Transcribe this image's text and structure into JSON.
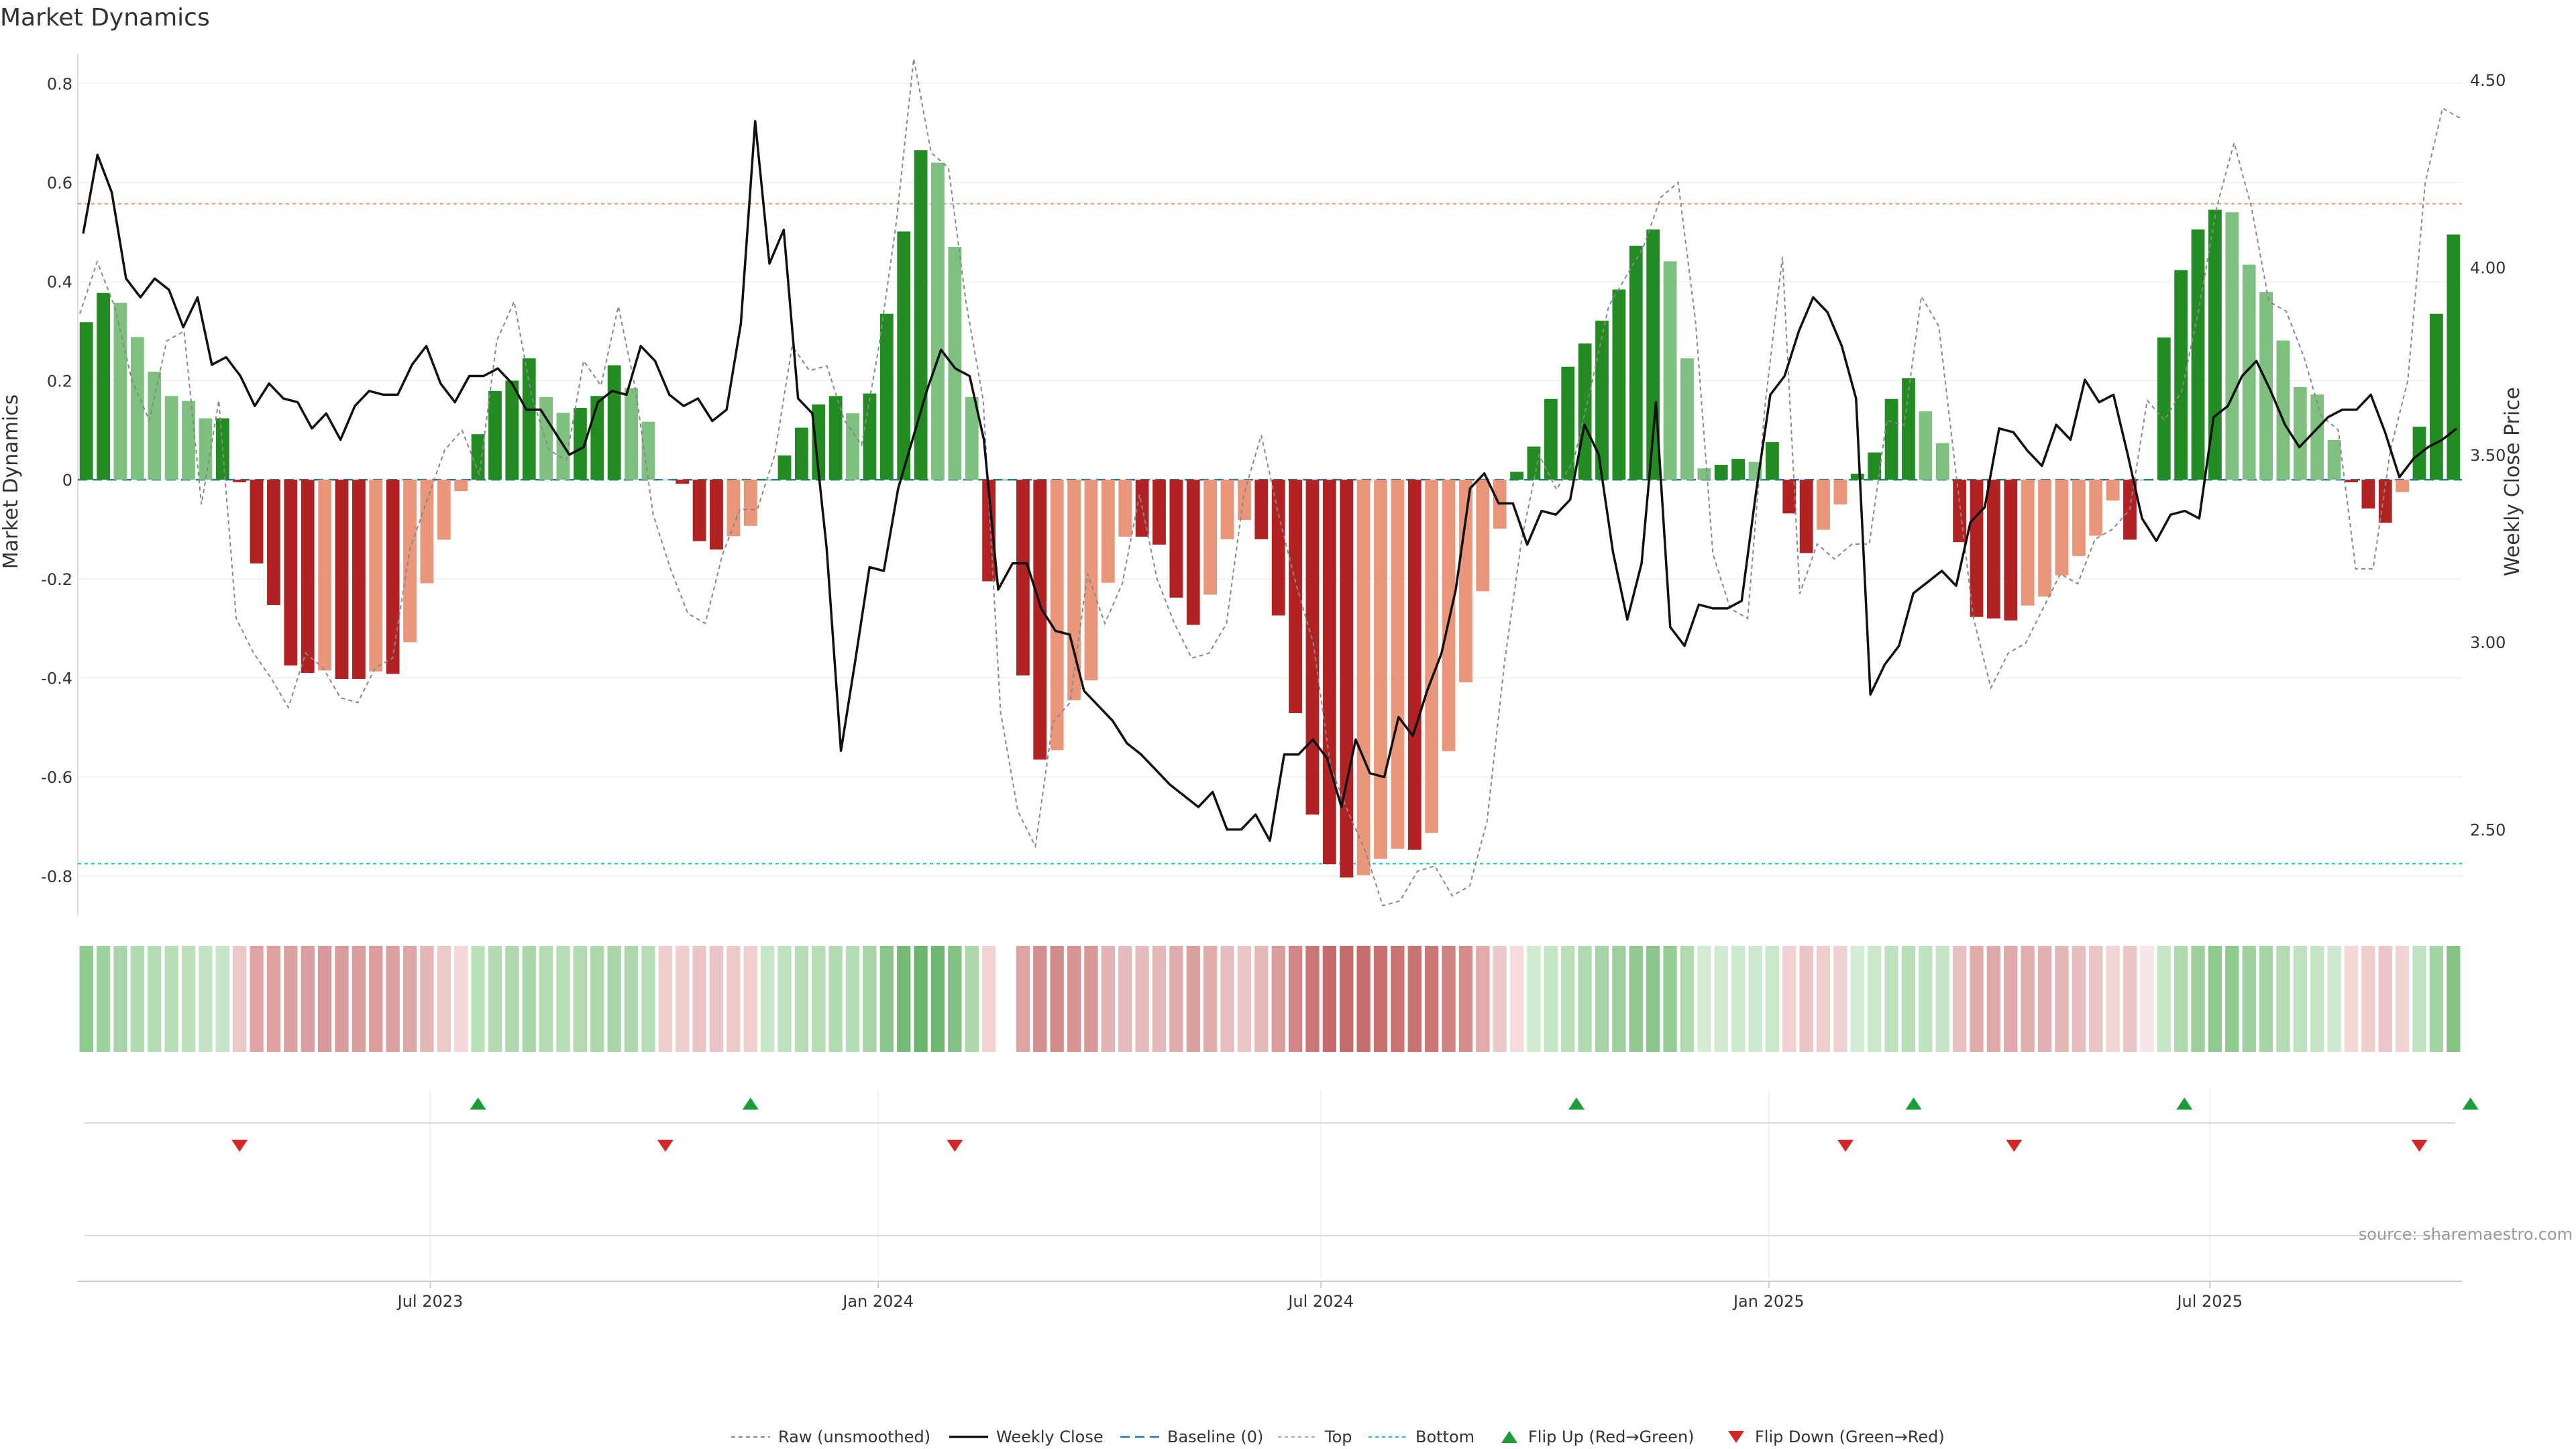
{
  "chart_data": {
    "type": "bar",
    "title": "Market Dynamics",
    "ylabel": "Market Dynamics",
    "y2label": "Weekly Close Price",
    "ylim": [
      -0.88,
      0.86
    ],
    "y2lim": [
      2.27,
      4.57
    ],
    "y_ticks": [
      "0.8",
      "0.6",
      "0.4",
      "0.2",
      "0",
      "-0.2",
      "-0.4",
      "-0.6",
      "-0.8"
    ],
    "y2_ticks": [
      "4.50",
      "4.00",
      "3.50",
      "3.00",
      "2.50"
    ],
    "x_ticks": [
      "Jul 2023",
      "Jan 2024",
      "Jul 2024",
      "Jan 2025",
      "Jul 2025"
    ],
    "x_tick_positions": [
      20.2,
      46.5,
      72.5,
      98.8,
      124.7
    ],
    "grid": true,
    "top_line": 0.557,
    "bottom_line": -0.775,
    "baseline": 0,
    "bar_values": [
      0.318,
      0.377,
      0.357,
      0.288,
      0.218,
      0.169,
      0.159,
      0.124,
      0.124,
      -0.005,
      -0.169,
      -0.253,
      -0.375,
      -0.39,
      -0.385,
      -0.402,
      -0.402,
      -0.387,
      -0.392,
      -0.328,
      -0.209,
      -0.121,
      -0.023,
      0.092,
      0.179,
      0.2,
      0.245,
      0.167,
      0.135,
      0.145,
      0.169,
      0.231,
      0.185,
      0.117,
      0,
      -0.008,
      -0.124,
      -0.141,
      -0.114,
      -0.093,
      0,
      0.049,
      0.105,
      0.152,
      0.169,
      0.134,
      0.174,
      0.335,
      0.501,
      0.665,
      0.64,
      0.47,
      0.167,
      -0.205,
      0,
      -0.395,
      -0.565,
      -0.546,
      -0.445,
      -0.405,
      -0.208,
      -0.115,
      -0.115,
      -0.131,
      -0.238,
      -0.293,
      -0.232,
      -0.12,
      -0.081,
      -0.12,
      -0.274,
      -0.471,
      -0.676,
      -0.776,
      -0.803,
      -0.798,
      -0.765,
      -0.745,
      -0.747,
      -0.713,
      -0.548,
      -0.409,
      -0.225,
      -0.099,
      0.016,
      0.067,
      0.163,
      0.228,
      0.275,
      0.321,
      0.384,
      0.472,
      0.505,
      0.441,
      0.245,
      0.023,
      0.03,
      0.042,
      0.036,
      0.076,
      -0.068,
      -0.148,
      -0.101,
      -0.05,
      0.012,
      0.055,
      0.163,
      0.205,
      0.138,
      0.074,
      -0.126,
      -0.277,
      -0.28,
      -0.284,
      -0.254,
      -0.236,
      -0.193,
      -0.154,
      -0.113,
      -0.042,
      -0.121,
      0,
      0.287,
      0.423,
      0.505,
      0.545,
      0.54,
      0.434,
      0.379,
      0.281,
      0.187,
      0.172,
      0.08,
      -0.005,
      -0.058,
      -0.087,
      -0.025,
      0.107,
      0.335,
      0.495
    ],
    "bar_colors_hex": {
      "strong_up": "#228b22",
      "weak_up": "#7fbf7f",
      "strong_down": "#b22222",
      "weak_down": "#e9967a"
    },
    "price_values": [
      4.09,
      4.3,
      4.2,
      3.97,
      3.92,
      3.97,
      3.94,
      3.84,
      3.92,
      3.74,
      3.76,
      3.71,
      3.63,
      3.69,
      3.65,
      3.64,
      3.57,
      3.61,
      3.54,
      3.63,
      3.67,
      3.66,
      3.66,
      3.74,
      3.79,
      3.69,
      3.64,
      3.71,
      3.71,
      3.73,
      3.69,
      3.62,
      3.62,
      3.56,
      3.5,
      3.52,
      3.64,
      3.67,
      3.66,
      3.79,
      3.75,
      3.66,
      3.63,
      3.65,
      3.59,
      3.62,
      3.85,
      4.39,
      4.01,
      4.1,
      3.65,
      3.61,
      3.25,
      2.71,
      2.95,
      3.2,
      3.19,
      3.41,
      3.54,
      3.67,
      3.78,
      3.73,
      3.71,
      3.54,
      3.14,
      3.21,
      3.21,
      3.09,
      3.03,
      3.02,
      2.87,
      2.83,
      2.79,
      2.73,
      2.7,
      2.66,
      2.62,
      2.59,
      2.56,
      2.6,
      2.5,
      2.5,
      2.54,
      2.47,
      2.7,
      2.7,
      2.74,
      2.69,
      2.56,
      2.74,
      2.65,
      2.64,
      2.8,
      2.75,
      2.87,
      2.97,
      3.14,
      3.41,
      3.45,
      3.37,
      3.37,
      3.26,
      3.35,
      3.34,
      3.38,
      3.58,
      3.5,
      3.24,
      3.06,
      3.21,
      3.64,
      3.04,
      2.99,
      3.1,
      3.09,
      3.09,
      3.11,
      3.4,
      3.66,
      3.71,
      3.83,
      3.92,
      3.88,
      3.79,
      3.65,
      2.86,
      2.94,
      2.99,
      3.13,
      3.16,
      3.19,
      3.15,
      3.32,
      3.36,
      3.57,
      3.56,
      3.51,
      3.47,
      3.58,
      3.54,
      3.7,
      3.64,
      3.66,
      3.5,
      3.33,
      3.27,
      3.34,
      3.35,
      3.33,
      3.6,
      3.63,
      3.71,
      3.75,
      3.67,
      3.58,
      3.52,
      3.56,
      3.6,
      3.62,
      3.62,
      3.66,
      3.56,
      3.44,
      3.49,
      3.52,
      3.54,
      3.57
    ],
    "raw_values": [
      0.335,
      0.44,
      0.35,
      0.2,
      0.12,
      0.28,
      0.3,
      -0.05,
      0.16,
      -0.28,
      -0.35,
      -0.4,
      -0.46,
      -0.35,
      -0.38,
      -0.44,
      -0.45,
      -0.38,
      -0.36,
      -0.14,
      -0.04,
      0.06,
      0.1,
      0.01,
      0.28,
      0.36,
      0.17,
      0.06,
      0.04,
      0.24,
      0.19,
      0.35,
      0.18,
      -0.07,
      -0.18,
      -0.27,
      -0.29,
      -0.15,
      -0.06,
      -0.06,
      0.05,
      0.27,
      0.22,
      0.23,
      0.12,
      0.07,
      0.27,
      0.52,
      0.85,
      0.66,
      0.63,
      0.36,
      0.16,
      -0.47,
      -0.67,
      -0.74,
      -0.49,
      -0.45,
      -0.19,
      -0.29,
      -0.21,
      -0.03,
      -0.2,
      -0.29,
      -0.36,
      -0.35,
      -0.29,
      -0.03,
      0.09,
      -0.07,
      -0.21,
      -0.33,
      -0.58,
      -0.67,
      -0.75,
      -0.86,
      -0.85,
      -0.79,
      -0.78,
      -0.84,
      -0.82,
      -0.69,
      -0.37,
      -0.12,
      0.05,
      -0.02,
      0.04,
      0.19,
      0.35,
      0.41,
      0.47,
      0.57,
      0.6,
      0.32,
      -0.15,
      -0.26,
      -0.28,
      0.15,
      0.45,
      -0.23,
      -0.13,
      -0.16,
      -0.13,
      -0.13,
      0.12,
      0.11,
      0.37,
      0.31,
      0.01,
      -0.28,
      -0.42,
      -0.35,
      -0.33,
      -0.26,
      -0.19,
      -0.21,
      -0.12,
      -0.1,
      -0.06,
      0.16,
      0.12,
      0.18,
      0.35,
      0.55,
      0.68,
      0.55,
      0.36,
      0.34,
      0.25,
      0.13,
      0.1,
      -0.18,
      -0.18,
      0.06,
      0.2,
      0.6,
      0.75,
      0.73
    ],
    "heat_strip_colors": [
      "#8fca8f",
      "#9dd19d",
      "#a8d6a8",
      "#b0dab0",
      "#b4dcb4",
      "#b8deb8",
      "#bce0bc",
      "#c2e3c2",
      "#c6e5c6",
      "#ecc8c8",
      "#e0a2a2",
      "#dea0a0",
      "#dba0a0",
      "#db9e9e",
      "#d69a9a",
      "#d89c9c",
      "#db9e9e",
      "#da9c9c",
      "#dc9f9f",
      "#dea7a7",
      "#e3b6b6",
      "#edcaca",
      "#f3d6d6",
      "#b9dfb9",
      "#b2dbb2",
      "#aed9ae",
      "#aad7aa",
      "#b4dcb4",
      "#b6ddb6",
      "#b2dbb2",
      "#acd8ac",
      "#a8d6a8",
      "#acd8ac",
      "#b6ddb6",
      "#eecdcd",
      "#eecdcd",
      "#ebc5c5",
      "#ebc5c5",
      "#edc9c9",
      "#efcfcf",
      "#c7e6c7",
      "#bfe1bf",
      "#b7dfb7",
      "#b5deb5",
      "#b0dab0",
      "#b4dcb4",
      "#a6d4a6",
      "#8bc68b",
      "#74ba74",
      "#6cb56c",
      "#6fb66f",
      "#82c282",
      "#abd7ab",
      "#f2d3d3",
      "#ffffff",
      "#dea4a4",
      "#d48e8e",
      "#d18a8a",
      "#d69393",
      "#d89898",
      "#e3b2b2",
      "#e7bbbb",
      "#e7bbbb",
      "#e5b8b8",
      "#deacac",
      "#d9a0a0",
      "#dfabab",
      "#e8bdbd",
      "#ecc6c6",
      "#e6b9b9",
      "#db9c9c",
      "#d28686",
      "#cb7676",
      "#c56b6b",
      "#c46a6a",
      "#c66d6d",
      "#c87070",
      "#c97373",
      "#c97272",
      "#ca7676",
      "#d08282",
      "#d48c8c",
      "#e3aaaa",
      "#eccaca",
      "#f4dcdc",
      "#cfeacf",
      "#c4e5c4",
      "#b9dfb9",
      "#b0dab0",
      "#a6d4a6",
      "#9ecf9e",
      "#91c991",
      "#8bc68b",
      "#94cc94",
      "#b0dab0",
      "#d2ebd2",
      "#d0ead0",
      "#cde9cd",
      "#cde9cd",
      "#c9e7c9",
      "#f1d1d1",
      "#ebc5c5",
      "#eecdcd",
      "#f0d1d1",
      "#d3ecd3",
      "#cbe8cb",
      "#bfe1bf",
      "#b8deb8",
      "#bfe1bf",
      "#c6e5c6",
      "#e8bfbf",
      "#e0abab",
      "#e0aaaa",
      "#dfa9a9",
      "#e1aeae",
      "#e2b0b0",
      "#e5b6b6",
      "#e8bdbd",
      "#ebc4c4",
      "#f2d4d4",
      "#ebc5c5",
      "#f7e4e4",
      "#c7e6c7",
      "#aed9ae",
      "#9ccf9c",
      "#8fca8f",
      "#8fca8f",
      "#9dd19d",
      "#a5d4a5",
      "#b4dcb4",
      "#bfe1bf",
      "#c4e4c4",
      "#cde9cd",
      "#f3d6d6",
      "#efcdcd",
      "#ecc6c6",
      "#f2d3d3",
      "#c0e2c0",
      "#a2d3a2",
      "#86c486"
    ],
    "flip_up": [
      23.0,
      39.0,
      87.5,
      107.3,
      123.2,
      140.0
    ],
    "flip_down": [
      9.0,
      34.0,
      51.0,
      103.3,
      113.2,
      137.0
    ],
    "legend": [
      "Raw (unsmoothed)",
      "Weekly Close",
      "Baseline (0)",
      "Top",
      "Bottom",
      "Flip Up (Red→Green)",
      "Flip Down (Green→Red)"
    ],
    "legend_placement": "bottom-center",
    "source": "source: sharemaestro.com"
  }
}
